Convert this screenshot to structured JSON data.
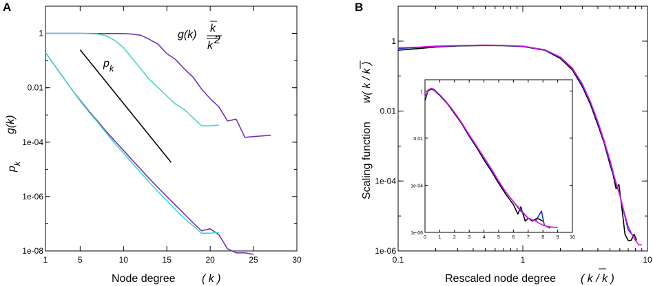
{
  "chart_data": [
    {
      "panel": "A",
      "type": "line",
      "xlabel": "Node degree",
      "xlabel_var": "( k )",
      "ylabel_top": "g(k)",
      "ylabel_bottom": "p",
      "ylabel_bottom_sub": "k",
      "yscale": "log",
      "xlim": [
        1,
        30
      ],
      "ylim": [
        1e-08,
        10
      ],
      "xticks": [
        1,
        5,
        10,
        15,
        20,
        25,
        30
      ],
      "yticks": [
        {
          "value": 1,
          "label": "1"
        },
        {
          "value": 0.01,
          "label": "0.01"
        },
        {
          "value": 0.0001,
          "label": "1e-04"
        },
        {
          "value": 1e-06,
          "label": "1e-06"
        },
        {
          "value": 1e-08,
          "label": "1e-08"
        }
      ],
      "annotations": {
        "pk_label": "p",
        "pk_sub": "k",
        "gk_label": "g(k)",
        "gk_frac_num": "k",
        "gk_frac_den": "k",
        "gk_frac_den_sup": "2"
      },
      "series": [
        {
          "name": "g(k) purple",
          "color": "#7030b8",
          "x": [
            1,
            5,
            10,
            11,
            12,
            13,
            14,
            15,
            16,
            17,
            18,
            19,
            20,
            21,
            22,
            23,
            24,
            25,
            27
          ],
          "y": [
            1,
            1,
            0.98,
            0.94,
            0.85,
            0.6,
            0.4,
            0.18,
            0.11,
            0.05,
            0.025,
            0.009,
            0.004,
            0.002,
            0.0006,
            0.0007,
            0.00015,
            0.00016,
            0.00018
          ]
        },
        {
          "name": "g(k) cyan",
          "color": "#40d8c8",
          "x": [
            1,
            5,
            7,
            8,
            9,
            10,
            11,
            12,
            13,
            14,
            15,
            16,
            17,
            18,
            19,
            20,
            21
          ],
          "y": [
            1,
            1,
            0.95,
            0.82,
            0.55,
            0.3,
            0.12,
            0.05,
            0.02,
            0.01,
            0.005,
            0.0025,
            0.0016,
            0.0008,
            0.0004,
            0.0004,
            0.00042
          ]
        },
        {
          "name": "p_k purple",
          "color": "#7030b8",
          "x": [
            1,
            2,
            3,
            4,
            5,
            6,
            7,
            8,
            9,
            10,
            11,
            12,
            13,
            14,
            15,
            16,
            17,
            18,
            19,
            20,
            21,
            22,
            23,
            24,
            25
          ],
          "y": [
            0.2,
            0.07,
            0.025,
            0.009,
            0.0035,
            0.0014,
            0.0006,
            0.00025,
            0.00011,
            5e-05,
            2.2e-05,
            1e-05,
            4.5e-06,
            2.1e-06,
            1e-06,
            4.8e-07,
            2.3e-07,
            1.1e-07,
            5.5e-08,
            6.5e-08,
            4e-08,
            1.2e-08,
            8.5e-09,
            8.5e-09,
            7.5e-09
          ]
        },
        {
          "name": "p_k cyan",
          "color": "#40d8c8",
          "x": [
            1,
            2,
            3,
            4,
            5,
            6,
            7,
            8,
            9,
            10,
            11,
            12,
            13,
            14,
            15,
            16,
            17,
            18,
            19,
            20,
            21
          ],
          "y": [
            0.2,
            0.07,
            0.025,
            0.009,
            0.0033,
            0.0013,
            0.00055,
            0.00022,
            9e-05,
            4e-05,
            1.7e-05,
            7.5e-06,
            3.3e-06,
            1.5e-06,
            7e-07,
            3.3e-07,
            1.6e-07,
            8.5e-08,
            4.5e-08,
            4.5e-08,
            4.8e-08
          ]
        },
        {
          "name": "power-law guide",
          "color": "#000000",
          "x": [
            5,
            15.5
          ],
          "y": [
            0.25,
            1.8e-05
          ]
        }
      ]
    },
    {
      "panel": "B",
      "type": "line",
      "xlabel": "Rescaled node degree",
      "xlabel_var": "( k / k )",
      "ylabel": "Scaling function",
      "ylabel_var": "w( k / k )",
      "xscale": "log",
      "yscale": "log",
      "xlim": [
        0.1,
        10
      ],
      "ylim": [
        1e-06,
        10
      ],
      "xticks": [
        {
          "value": 0.1,
          "label": "0.1"
        },
        {
          "value": 1,
          "label": "1"
        },
        {
          "value": 10,
          "label": "10"
        }
      ],
      "yticks": [
        {
          "value": 1,
          "label": "1"
        },
        {
          "value": 0.01,
          "label": "0.01"
        },
        {
          "value": 0.0001,
          "label": "1e-04"
        },
        {
          "value": 1e-06,
          "label": "1e-06"
        }
      ],
      "series": [
        {
          "name": "black",
          "color": "#000000",
          "x": [
            0.1,
            0.15,
            0.2,
            0.3,
            0.5,
            0.7,
            1,
            1.5,
            2,
            2.5,
            3,
            3.5,
            4,
            4.5,
            5,
            5.3,
            5.6,
            5.9,
            6.2,
            6.6,
            7,
            7.4,
            7.8,
            8.2
          ],
          "y": [
            0.55,
            0.62,
            0.68,
            0.73,
            0.75,
            0.74,
            0.7,
            0.55,
            0.32,
            0.15,
            0.05,
            0.015,
            0.004,
            0.0012,
            0.0003,
            0.00015,
            6e-05,
            8e-05,
            2e-05,
            3e-06,
            2e-06,
            2e-06,
            3e-06,
            2e-06
          ]
        },
        {
          "name": "blue",
          "color": "#1830c8",
          "x": [
            0.1,
            0.15,
            0.2,
            0.3,
            0.5,
            0.7,
            1,
            1.5,
            2,
            2.5,
            3,
            3.5,
            4,
            4.5,
            5,
            5.5,
            6,
            6.5,
            7,
            7.5,
            8
          ],
          "y": [
            0.62,
            0.66,
            0.7,
            0.74,
            0.76,
            0.75,
            0.71,
            0.56,
            0.34,
            0.16,
            0.055,
            0.017,
            0.0045,
            0.0013,
            0.00035,
            0.0001,
            4e-05,
            1.2e-05,
            4e-06,
            3e-06,
            2e-06
          ]
        },
        {
          "name": "magenta",
          "color": "#e010e0",
          "x": [
            0.1,
            0.15,
            0.2,
            0.3,
            0.5,
            0.7,
            1,
            1.5,
            2,
            2.5,
            3,
            3.5,
            4,
            4.5,
            5,
            5.5,
            6,
            6.5,
            7,
            7.5,
            8,
            8.5,
            9
          ],
          "y": [
            0.65,
            0.68,
            0.72,
            0.75,
            0.77,
            0.76,
            0.72,
            0.57,
            0.35,
            0.17,
            0.06,
            0.018,
            0.005,
            0.0014,
            0.0004,
            0.00011,
            4e-05,
            1.3e-05,
            5e-06,
            3e-06,
            2e-06,
            1.5e-06,
            1.5e-06
          ]
        }
      ],
      "inset": {
        "xscale": "linear",
        "yscale": "log",
        "xlim": [
          0,
          10
        ],
        "ylim": [
          1e-06,
          3
        ],
        "xticks": [
          "0",
          "1",
          "2",
          "3",
          "4",
          "5",
          "6",
          "7",
          "8",
          "9",
          "10"
        ],
        "yticks": [
          {
            "value": 1,
            "label": "1"
          },
          {
            "value": 0.01,
            "label": "0.01"
          },
          {
            "value": 0.0001,
            "label": "1e-04"
          },
          {
            "value": 1e-06,
            "label": "1e-06"
          }
        ],
        "series": [
          {
            "name": "black",
            "color": "#000000",
            "x": [
              0,
              0.2,
              0.4,
              0.6,
              1,
              1.5,
              2,
              2.5,
              3,
              3.5,
              4,
              4.5,
              5,
              5.5,
              6,
              6.3,
              6.5,
              6.8,
              7,
              7.3,
              7.6,
              8
            ],
            "y": [
              0.4,
              1.0,
              1.2,
              1.1,
              0.65,
              0.3,
              0.11,
              0.04,
              0.012,
              0.004,
              0.0012,
              0.0004,
              0.00012,
              4e-05,
              1.5e-05,
              6e-06,
              1.2e-05,
              3e-06,
              4e-06,
              3e-06,
              4e-06,
              3e-06
            ]
          },
          {
            "name": "blue",
            "color": "#1830c8",
            "x": [
              0,
              0.2,
              0.4,
              0.6,
              1,
              1.5,
              2,
              2.5,
              3,
              3.5,
              4,
              4.5,
              5,
              5.5,
              6,
              6.5,
              7,
              7.5,
              7.9,
              8.1,
              8.5
            ],
            "y": [
              0.5,
              1.05,
              1.25,
              1.15,
              0.68,
              0.31,
              0.12,
              0.042,
              0.013,
              0.0045,
              0.0014,
              0.00045,
              0.00014,
              5e-05,
              2e-05,
              8e-06,
              4e-06,
              3e-06,
              8e-06,
              2e-06,
              1.5e-06
            ]
          },
          {
            "name": "magenta",
            "color": "#e010e0",
            "x": [
              0,
              0.2,
              0.4,
              0.6,
              1,
              1.5,
              2,
              2.5,
              3,
              3.5,
              4,
              4.5,
              5,
              5.5,
              6,
              6.5,
              7,
              7.5,
              8,
              8.5,
              9
            ],
            "y": [
              0.55,
              1.1,
              1.3,
              1.2,
              0.7,
              0.32,
              0.125,
              0.044,
              0.014,
              0.0047,
              0.0015,
              0.0005,
              0.00015,
              5e-05,
              2e-05,
              9e-06,
              4e-06,
              3e-06,
              2e-06,
              1.7e-06,
              1.6e-06
            ]
          }
        ]
      }
    }
  ]
}
